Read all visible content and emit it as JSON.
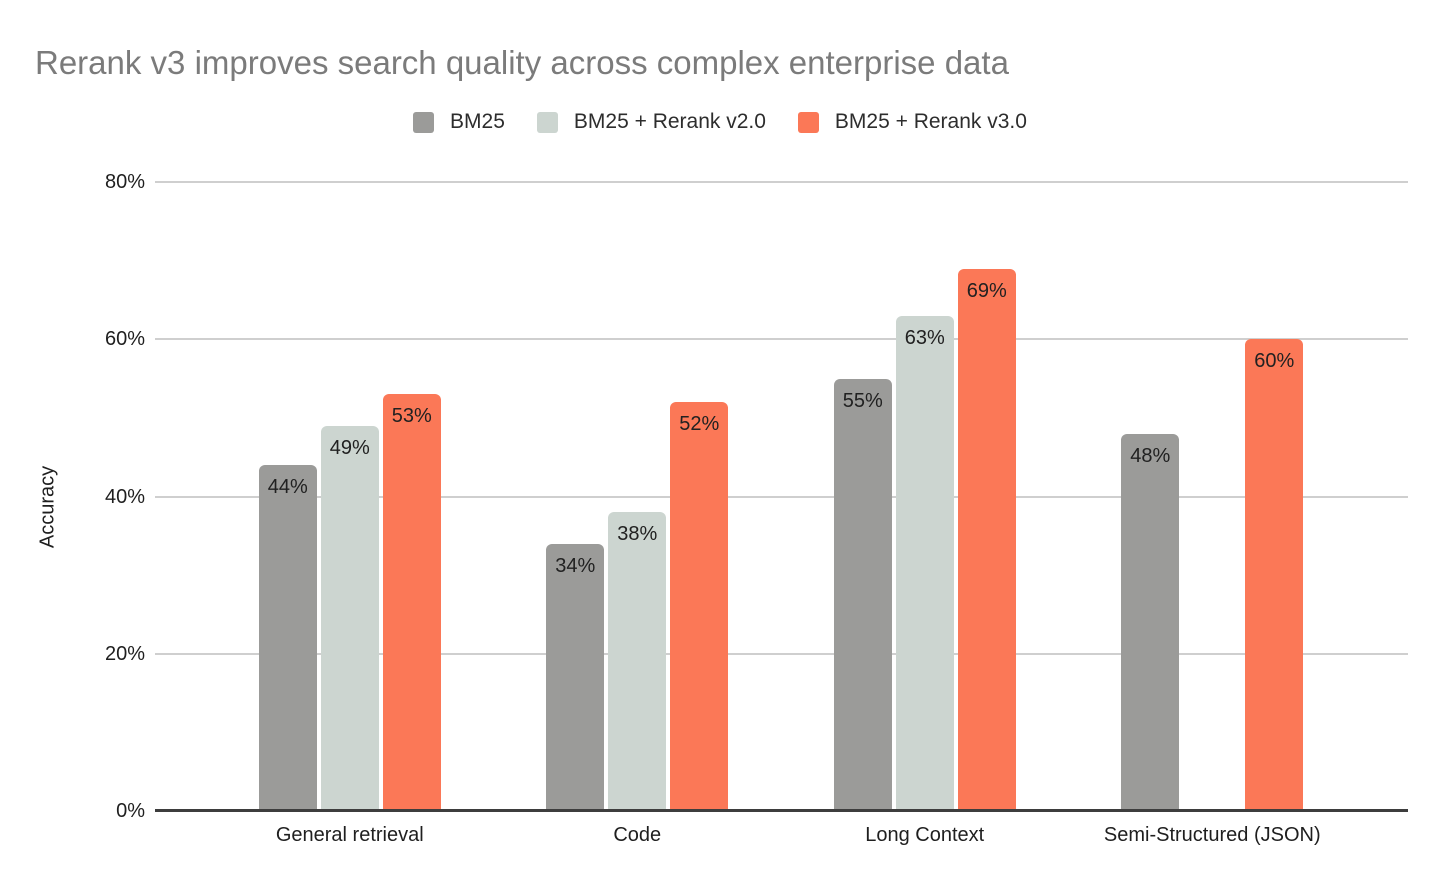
{
  "chart_data": {
    "type": "bar",
    "title": "Rerank v3 improves search quality across complex enterprise data",
    "ylabel": "Accuracy",
    "xlabel": "",
    "categories": [
      "General retrieval",
      "Code",
      "Long Context",
      "Semi-Structured (JSON)"
    ],
    "series": [
      {
        "name": "BM25",
        "color": "#9b9b99",
        "values": [
          44,
          34,
          55,
          48
        ]
      },
      {
        "name": "BM25 + Rerank v2.0",
        "color": "#ccd5d0",
        "values": [
          49,
          38,
          63,
          null
        ]
      },
      {
        "name": "BM25 + Rerank v3.0",
        "color": "#fb7857",
        "values": [
          53,
          52,
          69,
          60
        ]
      }
    ],
    "value_suffix": "%",
    "ylim": [
      0,
      80
    ],
    "yticks": [
      {
        "value": 80,
        "label": "80%"
      },
      {
        "value": 60,
        "label": "60%"
      },
      {
        "value": 40,
        "label": "40%"
      },
      {
        "value": 20,
        "label": "20%"
      },
      {
        "value": 0,
        "label": "0%"
      }
    ],
    "grid": true,
    "legend_position": "top",
    "colors": {
      "background": "#ffffff",
      "title_text": "#7b7b7b",
      "axis_text": "#1f1f1f",
      "value_label_text": "#212121",
      "gridline": "#cfcfcf",
      "baseline": "#3d3d3d"
    }
  }
}
